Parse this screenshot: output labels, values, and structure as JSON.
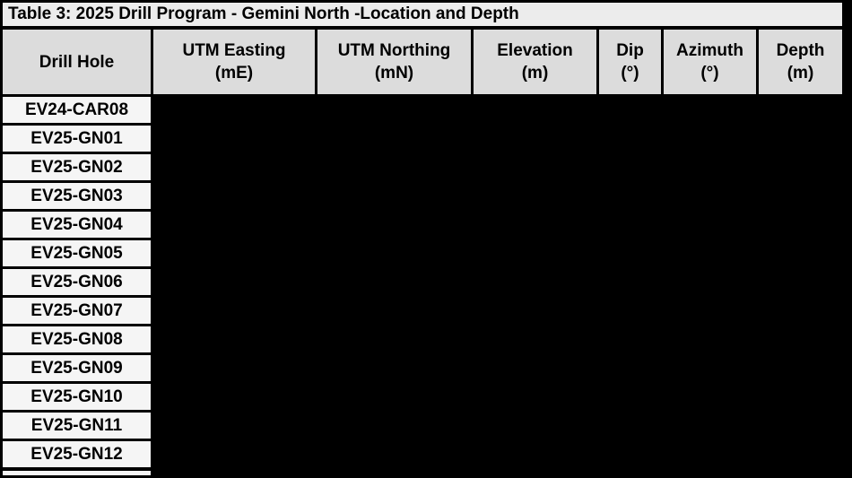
{
  "title": "Table 3: 2025 Drill Program - Gemini North -Location and Depth",
  "columns": [
    {
      "line1": "Drill Hole",
      "line2": ""
    },
    {
      "line1": "UTM Easting",
      "line2": "(mE)"
    },
    {
      "line1": "UTM Northing",
      "line2": "(mN)"
    },
    {
      "line1": "Elevation",
      "line2": "(m)"
    },
    {
      "line1": "Dip",
      "line2": "(°)"
    },
    {
      "line1": "Azimuth",
      "line2": "(°)"
    },
    {
      "line1": "Depth",
      "line2": "(m)"
    }
  ],
  "rows": [
    "EV24-CAR08",
    "EV25-GN01",
    "EV25-GN02",
    "EV25-GN03",
    "EV25-GN04",
    "EV25-GN05",
    "EV25-GN06",
    "EV25-GN07",
    "EV25-GN08",
    "EV25-GN09",
    "EV25-GN10",
    "EV25-GN11",
    "EV25-GN12"
  ],
  "colors": {
    "title_bg": "#ececec",
    "header_bg": "#dcdcdc",
    "row_label_bg": "#f5f5f5",
    "border": "#000000",
    "redaction": "#000000"
  }
}
